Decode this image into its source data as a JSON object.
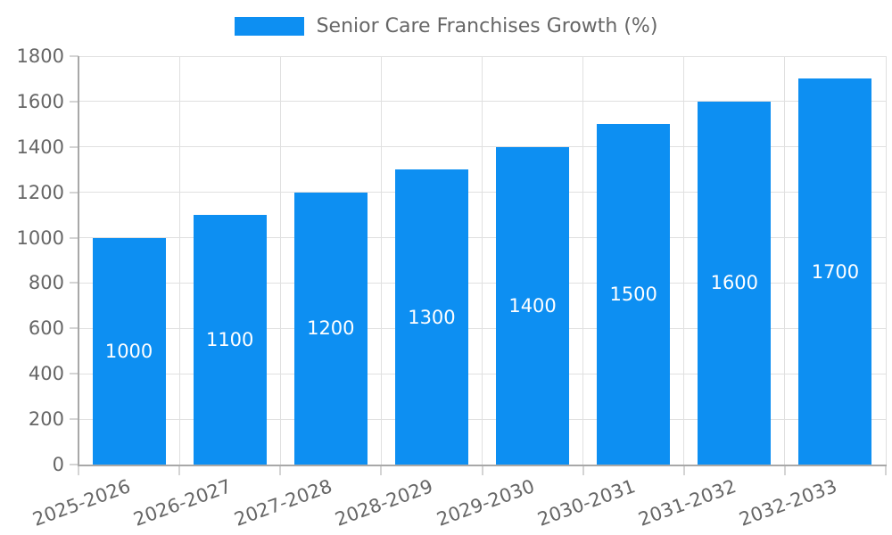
{
  "legend": {
    "label": "Senior Care Franchises Growth (%)"
  },
  "chart_data": {
    "type": "bar",
    "title": "Senior Care Franchises Growth (%)",
    "categories": [
      "2025-2026",
      "2026-2027",
      "2027-2028",
      "2028-2029",
      "2029-2030",
      "2030-2031",
      "2031-2032",
      "2032-2033"
    ],
    "values": [
      1000,
      1100,
      1200,
      1300,
      1400,
      1500,
      1600,
      1700
    ],
    "xlabel": "",
    "ylabel": "",
    "ylim": [
      0,
      1800
    ],
    "ytick_step": 200,
    "grid": true,
    "legend_position": "top",
    "value_labels": "inside-center",
    "x_tick_rotation_deg": -20,
    "colors": {
      "bar": "#0d8ff2",
      "grid": "#e0e0e0",
      "axis_border": "#a8a8a8",
      "tick_mark": "#d4d4d4",
      "tick_text": "#666666",
      "value_label": "#ffffff",
      "legend_text": "#666666",
      "background": "#ffffff"
    }
  }
}
